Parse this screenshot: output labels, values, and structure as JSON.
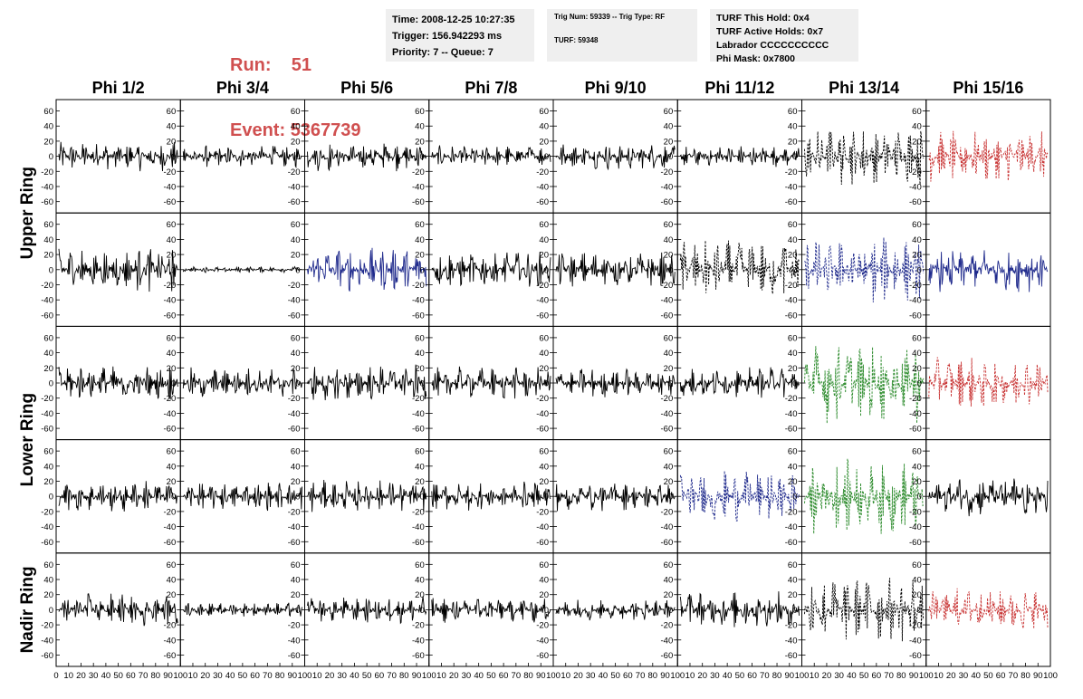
{
  "header": {
    "run_label": "Run:",
    "run_value": "51",
    "event_label": "Event:",
    "event_value": "5367739"
  },
  "info_time": {
    "time": "Time: 2008-12-25 10:27:35",
    "trigger": "Trigger: 156.942293 ms",
    "priority": "Priority: 7 -- Queue: 7"
  },
  "info_trig": {
    "trig": "Trig Num: 59339 -- Trig Type: RF",
    "turf": "TURF: 59348"
  },
  "info_turf": {
    "this_hold": "TURF This Hold: 0x4",
    "active_holds": "TURF Active Holds: 0x7",
    "labrador": "Labrador CCCCCCCCCC",
    "phi_mask": "Phi Mask: 0x7800"
  },
  "chart_data": {
    "type": "line",
    "columns": [
      "Phi 1/2",
      "Phi 3/4",
      "Phi 5/6",
      "Phi 7/8",
      "Phi 9/10",
      "Phi 11/12",
      "Phi 13/14",
      "Phi 15/16"
    ],
    "rows": [
      "Upper Ring",
      "Upper Ring",
      "Lower Ring",
      "Lower Ring",
      "Nadir Ring"
    ],
    "row_labels": [
      {
        "text": "Upper Ring",
        "spans_rows": [
          0,
          1
        ]
      },
      {
        "text": "Lower Ring",
        "spans_rows": [
          2,
          3
        ]
      },
      {
        "text": "Nadir Ring",
        "spans_rows": [
          4,
          4
        ]
      }
    ],
    "ylim": [
      -75,
      75
    ],
    "yticks": [
      60,
      40,
      20,
      0,
      -20,
      -40,
      -60
    ],
    "xlim": [
      0,
      100
    ],
    "xticks": [
      0,
      10,
      20,
      30,
      40,
      50,
      60,
      70,
      80,
      90,
      100
    ],
    "colors": {
      "black": "#000000",
      "blue": "#1f2a8c",
      "red": "#c83232",
      "green": "#2a8a2a"
    },
    "panels": [
      [
        {
          "color": "black",
          "dashed": false,
          "amp": 20
        },
        {
          "color": "black",
          "dashed": false,
          "amp": 15
        },
        {
          "color": "black",
          "dashed": false,
          "amp": 20
        },
        {
          "color": "black",
          "dashed": false,
          "amp": 15
        },
        {
          "color": "black",
          "dashed": false,
          "amp": 18
        },
        {
          "color": "black",
          "dashed": false,
          "amp": 15
        },
        {
          "color": "black",
          "dashed": true,
          "amp": 40
        },
        {
          "color": "red",
          "dashed": true,
          "amp": 35
        }
      ],
      [
        {
          "color": "black",
          "dashed": false,
          "amp": 30
        },
        {
          "color": "black",
          "dashed": false,
          "amp": 4
        },
        {
          "color": "blue",
          "dashed": false,
          "amp": 30
        },
        {
          "color": "black",
          "dashed": false,
          "amp": 25
        },
        {
          "color": "black",
          "dashed": false,
          "amp": 25
        },
        {
          "color": "black",
          "dashed": true,
          "amp": 40
        },
        {
          "color": "blue",
          "dashed": true,
          "amp": 45
        },
        {
          "color": "blue",
          "dashed": false,
          "amp": 30
        }
      ],
      [
        {
          "color": "black",
          "dashed": false,
          "amp": 25
        },
        {
          "color": "black",
          "dashed": false,
          "amp": 22
        },
        {
          "color": "black",
          "dashed": false,
          "amp": 25
        },
        {
          "color": "black",
          "dashed": false,
          "amp": 22
        },
        {
          "color": "black",
          "dashed": false,
          "amp": 20
        },
        {
          "color": "black",
          "dashed": false,
          "amp": 22
        },
        {
          "color": "green",
          "dashed": true,
          "amp": 55
        },
        {
          "color": "red",
          "dashed": true,
          "amp": 35
        }
      ],
      [
        {
          "color": "black",
          "dashed": false,
          "amp": 22
        },
        {
          "color": "black",
          "dashed": false,
          "amp": 20
        },
        {
          "color": "black",
          "dashed": false,
          "amp": 22
        },
        {
          "color": "black",
          "dashed": false,
          "amp": 20
        },
        {
          "color": "black",
          "dashed": false,
          "amp": 20
        },
        {
          "color": "blue",
          "dashed": true,
          "amp": 35
        },
        {
          "color": "green",
          "dashed": true,
          "amp": 50
        },
        {
          "color": "black",
          "dashed": false,
          "amp": 28
        }
      ],
      [
        {
          "color": "black",
          "dashed": false,
          "amp": 22
        },
        {
          "color": "black",
          "dashed": false,
          "amp": 10
        },
        {
          "color": "black",
          "dashed": false,
          "amp": 18
        },
        {
          "color": "black",
          "dashed": false,
          "amp": 18
        },
        {
          "color": "black",
          "dashed": false,
          "amp": 15
        },
        {
          "color": "black",
          "dashed": false,
          "amp": 25
        },
        {
          "color": "black",
          "dashed": true,
          "amp": 45
        },
        {
          "color": "red",
          "dashed": true,
          "amp": 30
        }
      ]
    ]
  }
}
